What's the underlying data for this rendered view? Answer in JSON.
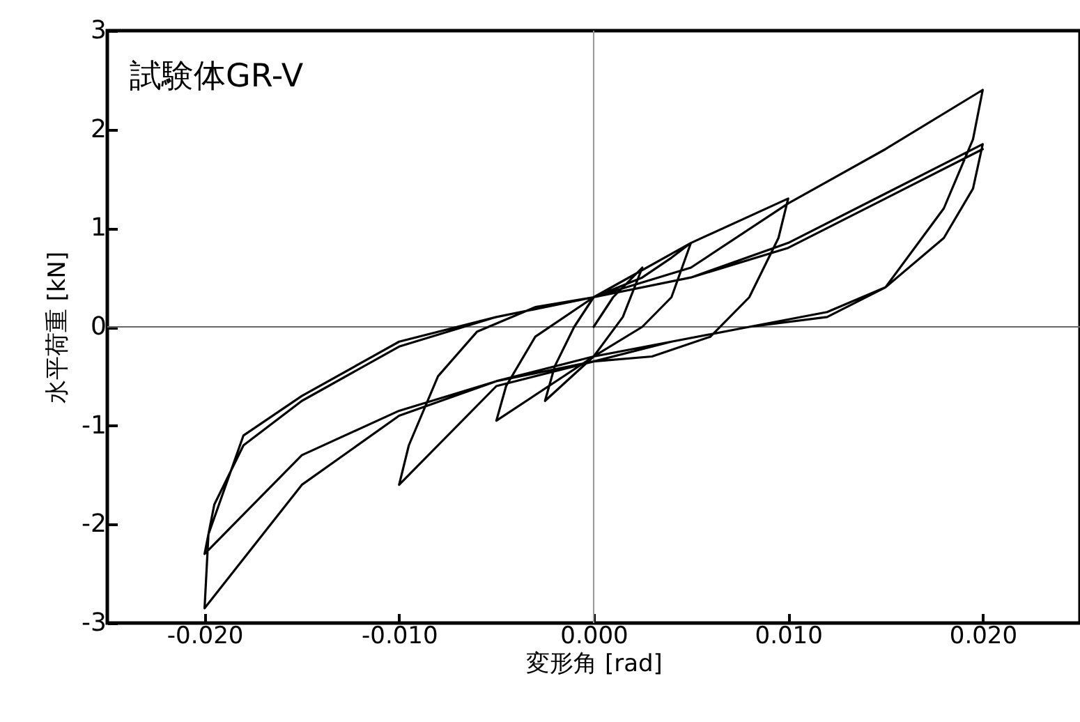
{
  "chart_data": {
    "type": "line",
    "title": "試験体GR-V",
    "xlabel": "変形角 [rad]",
    "ylabel": "水平荷重 [kN]",
    "xlim": [
      -0.025,
      0.025
    ],
    "ylim": [
      -3,
      3
    ],
    "xticks": [
      {
        "value": -0.02,
        "label": "-0.020"
      },
      {
        "value": -0.01,
        "label": "-0.010"
      },
      {
        "value": 0,
        "label": "0.000"
      },
      {
        "value": 0.01,
        "label": "0.010"
      },
      {
        "value": 0.02,
        "label": "0.020"
      }
    ],
    "yticks": [
      -3,
      -2,
      -1,
      0,
      1,
      2,
      3
    ],
    "grid": false,
    "line_style": "solid",
    "ref_lines": [
      {
        "axis": "x",
        "value": 0,
        "color": "#999999"
      },
      {
        "axis": "y",
        "value": 0,
        "color": "#666666"
      }
    ],
    "series": [
      {
        "color": "#000000",
        "x": [
          0,
          0.001,
          0.0025,
          0.0015,
          0,
          -0.0025,
          -0.002,
          -0.001,
          0,
          0.0025,
          0.004,
          0.005,
          0.004,
          0.0025,
          0,
          -0.005,
          -0.0045,
          -0.003,
          0,
          0.005,
          0.01,
          0.0095,
          0.008,
          0.006,
          0.003,
          0,
          -0.005,
          -0.01,
          -0.0095,
          -0.008,
          -0.006,
          -0.003,
          0,
          0.005,
          0.01,
          0.015,
          0.02,
          0.0195,
          0.018,
          0.015,
          0.012,
          0.008,
          0.004,
          0,
          -0.005,
          -0.01,
          -0.015,
          -0.02,
          -0.0198,
          -0.018,
          -0.015,
          -0.01,
          -0.005,
          0,
          0.005,
          0.01,
          0.015,
          0.02,
          0.0195,
          0.018,
          0.015,
          0.012,
          0.008,
          0.004,
          0,
          -0.005,
          -0.01,
          -0.015,
          -0.018,
          -0.02,
          -0.0195,
          -0.018,
          -0.015,
          -0.01,
          -0.005,
          0,
          0.005,
          0.01,
          0.015,
          0.02
        ],
        "values": [
          0,
          0.3,
          0.6,
          0.1,
          -0.3,
          -0.75,
          -0.4,
          0,
          0.3,
          0.5,
          0.7,
          0.85,
          0.3,
          0,
          -0.3,
          -0.95,
          -0.6,
          -0.1,
          0.3,
          0.85,
          1.3,
          0.9,
          0.3,
          -0.1,
          -0.3,
          -0.35,
          -0.6,
          -1.6,
          -1.2,
          -0.5,
          -0.05,
          0.2,
          0.3,
          0.6,
          1.25,
          1.8,
          2.4,
          1.9,
          1.2,
          0.4,
          0.1,
          0,
          -0.15,
          -0.3,
          -0.55,
          -0.9,
          -1.6,
          -2.85,
          -2.1,
          -1.1,
          -0.7,
          -0.15,
          0.1,
          0.3,
          0.5,
          0.85,
          1.35,
          1.85,
          1.4,
          0.9,
          0.4,
          0.15,
          0,
          -0.15,
          -0.35,
          -0.55,
          -0.85,
          -1.3,
          -1.9,
          -2.3,
          -1.8,
          -1.2,
          -0.75,
          -0.2,
          0.1,
          0.3,
          0.5,
          0.8,
          1.3,
          1.8
        ]
      }
    ]
  }
}
